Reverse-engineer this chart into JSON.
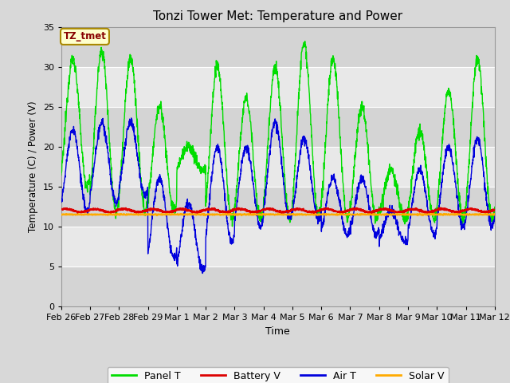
{
  "title": "Tonzi Tower Met: Temperature and Power",
  "xlabel": "Time",
  "ylabel": "Temperature (C) / Power (V)",
  "ylim": [
    0,
    35
  ],
  "yticks": [
    0,
    5,
    10,
    15,
    20,
    25,
    30,
    35
  ],
  "tag_label": "TZ_tmet",
  "tag_facecolor": "#ffffcc",
  "tag_edgecolor": "#aa8800",
  "tag_textcolor": "#880000",
  "fig_facecolor": "#d8d8d8",
  "plot_facecolor": "#e8e8e8",
  "legend_labels": [
    "Panel T",
    "Battery V",
    "Air T",
    "Solar V"
  ],
  "legend_colors": [
    "#00dd00",
    "#dd0000",
    "#0000dd",
    "#ffaa00"
  ],
  "line_colors": {
    "panel_t": "#00dd00",
    "battery_v": "#dd0000",
    "air_t": "#0000dd",
    "solar_v": "#ffaa00"
  },
  "date_labels": [
    "Feb 26",
    "Feb 27",
    "Feb 28",
    "Feb 29",
    "Mar 1",
    "Mar 2",
    "Mar 3",
    "Mar 4",
    "Mar 5",
    "Mar 6",
    "Mar 7",
    "Mar 8",
    "Mar 9",
    "Mar 10",
    "Mar 11",
    "Mar 12"
  ],
  "n_days": 15,
  "pts_per_day": 144,
  "band_color_light": "#e8e8e8",
  "band_color_dark": "#d4d4d4"
}
